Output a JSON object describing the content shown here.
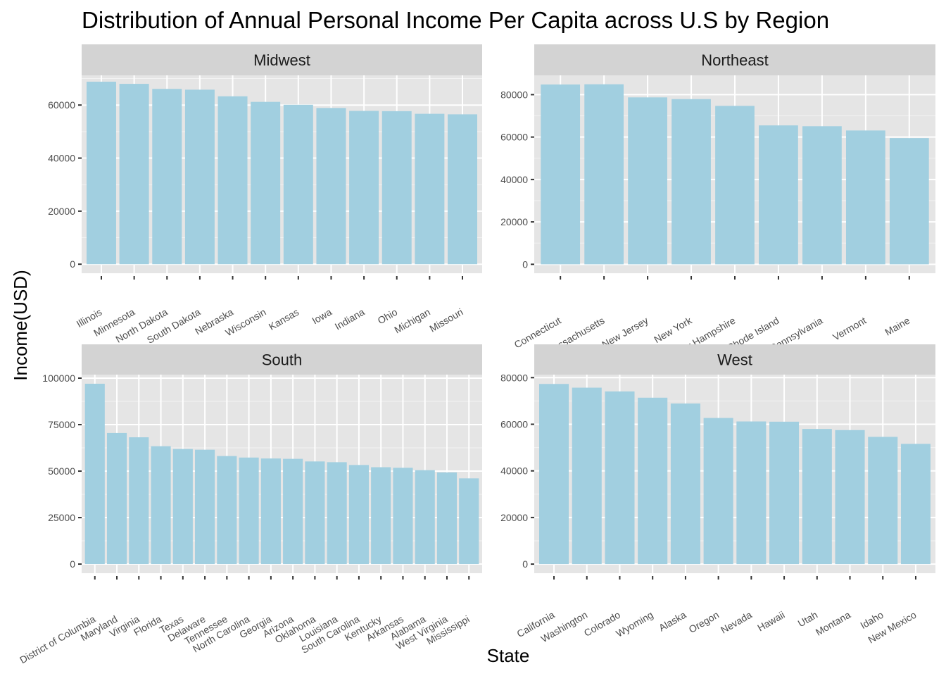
{
  "chart_data": {
    "type": "bar",
    "title": "Distribution of Annual Personal Income Per Capita across U.S by Region",
    "xlabel": "State",
    "ylabel": "Income(USD)",
    "bar_color": "#a1cfe0",
    "panel_background": "#e5e5e5",
    "strip_background": "#d3d3d3",
    "grid": true,
    "panels": [
      {
        "name": "Midwest",
        "categories": [
          "Illinois",
          "Minnesota",
          "North Dakota",
          "South Dakota",
          "Nebraska",
          "Wisconsin",
          "Kansas",
          "Iowa",
          "Indiana",
          "Ohio",
          "Michigan",
          "Missouri"
        ],
        "values": [
          68800,
          68000,
          66100,
          65800,
          63300,
          61200,
          60100,
          58900,
          57800,
          57700,
          56700,
          56500
        ],
        "ylim": [
          -3400,
          71200
        ],
        "yticks": [
          0,
          20000,
          40000,
          60000
        ],
        "ytick_labels": [
          "0",
          "20000",
          "40000",
          "60000"
        ]
      },
      {
        "name": "Northeast",
        "categories": [
          "Connecticut",
          "Massachusetts",
          "New Jersey",
          "New York",
          "New Hampshire",
          "Rhode Island",
          "Pennsylvania",
          "Vermont",
          "Maine"
        ],
        "values": [
          84800,
          84900,
          78700,
          77900,
          74700,
          65500,
          65100,
          63100,
          59500
        ],
        "ylim": [
          -4200,
          89100
        ],
        "yticks": [
          0,
          20000,
          40000,
          60000,
          80000
        ],
        "ytick_labels": [
          "0",
          "20000",
          "40000",
          "60000",
          "80000"
        ]
      },
      {
        "name": "South",
        "categories": [
          "District of Columbia",
          "Maryland",
          "Virginia",
          "Florida",
          "Texas",
          "Delaware",
          "Tennessee",
          "North Carolina",
          "Georgia",
          "Arizona",
          "Oklahoma",
          "Louisiana",
          "South Carolina",
          "Kentucky",
          "Arkansas",
          "Alabama",
          "West Virginia",
          "Mississippi"
        ],
        "values": [
          97000,
          70500,
          68200,
          63400,
          61900,
          61500,
          58100,
          57300,
          56800,
          56600,
          55200,
          54800,
          53300,
          52100,
          51800,
          50500,
          49300,
          46100
        ],
        "ylim": [
          -4900,
          101900
        ],
        "yticks": [
          0,
          25000,
          50000,
          75000,
          100000
        ],
        "ytick_labels": [
          "0",
          "25000",
          "50000",
          "75000",
          "100000"
        ]
      },
      {
        "name": "West",
        "categories": [
          "California",
          "Washington",
          "Colorado",
          "Wyoming",
          "Alaska",
          "Oregon",
          "Nevada",
          "Hawaii",
          "Utah",
          "Montana",
          "Idaho",
          "New Mexico"
        ],
        "values": [
          77300,
          75700,
          74100,
          71400,
          68900,
          62700,
          61200,
          61100,
          58000,
          57500,
          54600,
          51600
        ],
        "ylim": [
          -3900,
          81300
        ],
        "yticks": [
          0,
          20000,
          40000,
          60000,
          80000
        ],
        "ytick_labels": [
          "0",
          "20000",
          "40000",
          "60000",
          "80000"
        ]
      }
    ]
  }
}
